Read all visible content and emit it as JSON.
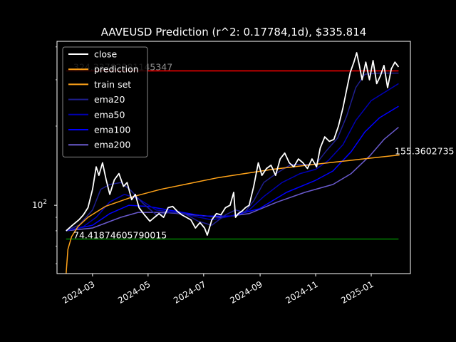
{
  "chart_data": {
    "type": "line",
    "title": "AAVEUSD Prediction (r^2: 0.17784,1d), $335.814",
    "xlabel": "",
    "ylabel": "",
    "y_scale": "log",
    "ylim": [
      55,
      420
    ],
    "xlim": [
      "2024-01-22",
      "2025-02-13"
    ],
    "x_ticks": [
      "2024-03",
      "2024-05",
      "2024-07",
      "2024-09",
      "2024-11",
      "2025-01"
    ],
    "y_ticks": [
      {
        "value": 100,
        "label": "10^2"
      }
    ],
    "grid": false,
    "legend_position": "upper-left",
    "legend": [
      "close",
      "prediction",
      "train set",
      "ema20",
      "ema50",
      "ema100",
      "ema200"
    ],
    "annotations": {
      "upper_level": {
        "value": 324.33782381145346,
        "label": "324.33782381145347"
      },
      "lower_level": {
        "value": 74.41874605790015,
        "label": "74.41874605790015"
      },
      "forecast_end": {
        "value": 155.3602735,
        "label": "155.3602735"
      }
    },
    "series": [
      {
        "name": "close",
        "color": "#ffffff",
        "points": [
          [
            "2024-02-01",
            80
          ],
          [
            "2024-02-08",
            84
          ],
          [
            "2024-02-15",
            88
          ],
          [
            "2024-02-20",
            92
          ],
          [
            "2024-02-25",
            98
          ],
          [
            "2024-03-01",
            115
          ],
          [
            "2024-03-05",
            140
          ],
          [
            "2024-03-08",
            130
          ],
          [
            "2024-03-12",
            145
          ],
          [
            "2024-03-16",
            125
          ],
          [
            "2024-03-20",
            110
          ],
          [
            "2024-03-25",
            125
          ],
          [
            "2024-03-30",
            132
          ],
          [
            "2024-04-04",
            118
          ],
          [
            "2024-04-08",
            122
          ],
          [
            "2024-04-13",
            105
          ],
          [
            "2024-04-17",
            110
          ],
          [
            "2024-04-21",
            98
          ],
          [
            "2024-04-27",
            92
          ],
          [
            "2024-05-03",
            87
          ],
          [
            "2024-05-08",
            90
          ],
          [
            "2024-05-13",
            93
          ],
          [
            "2024-05-18",
            90
          ],
          [
            "2024-05-23",
            98
          ],
          [
            "2024-05-28",
            99
          ],
          [
            "2024-06-02",
            95
          ],
          [
            "2024-06-07",
            92
          ],
          [
            "2024-06-12",
            90
          ],
          [
            "2024-06-17",
            88
          ],
          [
            "2024-06-22",
            82
          ],
          [
            "2024-06-27",
            86
          ],
          [
            "2024-07-02",
            82
          ],
          [
            "2024-07-05",
            77
          ],
          [
            "2024-07-10",
            88
          ],
          [
            "2024-07-15",
            93
          ],
          [
            "2024-07-20",
            92
          ],
          [
            "2024-07-25",
            98
          ],
          [
            "2024-07-30",
            100
          ],
          [
            "2024-08-03",
            112
          ],
          [
            "2024-08-05",
            90
          ],
          [
            "2024-08-08",
            93
          ],
          [
            "2024-08-12",
            95
          ],
          [
            "2024-08-16",
            98
          ],
          [
            "2024-08-20",
            100
          ],
          [
            "2024-08-25",
            118
          ],
          [
            "2024-08-30",
            145
          ],
          [
            "2024-09-03",
            130
          ],
          [
            "2024-09-08",
            138
          ],
          [
            "2024-09-13",
            142
          ],
          [
            "2024-09-18",
            130
          ],
          [
            "2024-09-23",
            150
          ],
          [
            "2024-09-28",
            158
          ],
          [
            "2024-10-03",
            145
          ],
          [
            "2024-10-08",
            140
          ],
          [
            "2024-10-13",
            150
          ],
          [
            "2024-10-18",
            145
          ],
          [
            "2024-10-23",
            138
          ],
          [
            "2024-10-28",
            150
          ],
          [
            "2024-11-02",
            140
          ],
          [
            "2024-11-06",
            165
          ],
          [
            "2024-11-11",
            182
          ],
          [
            "2024-11-16",
            175
          ],
          [
            "2024-11-21",
            178
          ],
          [
            "2024-11-26",
            200
          ],
          [
            "2024-12-01",
            235
          ],
          [
            "2024-12-05",
            275
          ],
          [
            "2024-12-09",
            320
          ],
          [
            "2024-12-13",
            350
          ],
          [
            "2024-12-16",
            380
          ],
          [
            "2024-12-19",
            340
          ],
          [
            "2024-12-22",
            300
          ],
          [
            "2024-12-26",
            350
          ],
          [
            "2024-12-30",
            300
          ],
          [
            "2025-01-03",
            355
          ],
          [
            "2025-01-07",
            290
          ],
          [
            "2025-01-11",
            310
          ],
          [
            "2025-01-15",
            340
          ],
          [
            "2025-01-19",
            280
          ],
          [
            "2025-01-23",
            330
          ],
          [
            "2025-01-27",
            350
          ],
          [
            "2025-01-31",
            335.814
          ]
        ]
      },
      {
        "name": "prediction",
        "color": "#ffa319",
        "points": [
          [
            "2024-02-01",
            55
          ],
          [
            "2024-02-03",
            68
          ],
          [
            "2024-02-07",
            76
          ],
          [
            "2024-02-14",
            83
          ],
          [
            "2024-02-25",
            90
          ],
          [
            "2024-03-15",
            99
          ],
          [
            "2024-04-15",
            108
          ],
          [
            "2024-05-15",
            115
          ],
          [
            "2024-06-15",
            121
          ],
          [
            "2024-07-15",
            127
          ],
          [
            "2024-08-15",
            132
          ],
          [
            "2024-09-15",
            137
          ],
          [
            "2024-10-15",
            141
          ],
          [
            "2024-11-15",
            145
          ],
          [
            "2024-12-15",
            149
          ],
          [
            "2025-01-15",
            153
          ],
          [
            "2025-02-01",
            155.36
          ]
        ]
      },
      {
        "name": "ema20",
        "color": "#1f1f8f",
        "points": [
          [
            "2024-02-01",
            80
          ],
          [
            "2024-02-15",
            84
          ],
          [
            "2024-03-01",
            96
          ],
          [
            "2024-03-10",
            115
          ],
          [
            "2024-03-20",
            120
          ],
          [
            "2024-04-01",
            122
          ],
          [
            "2024-04-12",
            114
          ],
          [
            "2024-04-25",
            102
          ],
          [
            "2024-05-10",
            92
          ],
          [
            "2024-05-25",
            94
          ],
          [
            "2024-06-10",
            93
          ],
          [
            "2024-06-25",
            87
          ],
          [
            "2024-07-10",
            84
          ],
          [
            "2024-07-25",
            92
          ],
          [
            "2024-08-05",
            96
          ],
          [
            "2024-08-15",
            94
          ],
          [
            "2024-08-25",
            104
          ],
          [
            "2024-09-05",
            122
          ],
          [
            "2024-09-20",
            133
          ],
          [
            "2024-10-05",
            143
          ],
          [
            "2024-10-20",
            143
          ],
          [
            "2024-11-01",
            143
          ],
          [
            "2024-11-12",
            160
          ],
          [
            "2024-11-25",
            180
          ],
          [
            "2024-12-05",
            218
          ],
          [
            "2024-12-15",
            280
          ],
          [
            "2024-12-25",
            315
          ],
          [
            "2025-01-10",
            318
          ],
          [
            "2025-01-31",
            318
          ]
        ]
      },
      {
        "name": "ema50",
        "color": "#0000b4",
        "points": [
          [
            "2024-02-01",
            80
          ],
          [
            "2024-02-20",
            83
          ],
          [
            "2024-03-05",
            90
          ],
          [
            "2024-03-20",
            103
          ],
          [
            "2024-04-05",
            110
          ],
          [
            "2024-04-20",
            106
          ],
          [
            "2024-05-10",
            96
          ],
          [
            "2024-06-01",
            94
          ],
          [
            "2024-06-20",
            91
          ],
          [
            "2024-07-10",
            88
          ],
          [
            "2024-07-31",
            91
          ],
          [
            "2024-08-20",
            96
          ],
          [
            "2024-09-05",
            108
          ],
          [
            "2024-09-25",
            122
          ],
          [
            "2024-10-15",
            132
          ],
          [
            "2024-11-01",
            137
          ],
          [
            "2024-11-15",
            148
          ],
          [
            "2024-12-01",
            170
          ],
          [
            "2024-12-15",
            210
          ],
          [
            "2025-01-01",
            250
          ],
          [
            "2025-01-31",
            290
          ]
        ]
      },
      {
        "name": "ema100",
        "color": "#0000ff",
        "points": [
          [
            "2024-02-01",
            80
          ],
          [
            "2024-03-01",
            84
          ],
          [
            "2024-03-20",
            93
          ],
          [
            "2024-04-10",
            100
          ],
          [
            "2024-05-01",
            99
          ],
          [
            "2024-05-31",
            95
          ],
          [
            "2024-07-01",
            91
          ],
          [
            "2024-07-31",
            91
          ],
          [
            "2024-08-31",
            97
          ],
          [
            "2024-09-30",
            112
          ],
          [
            "2024-10-31",
            124
          ],
          [
            "2024-11-20",
            135
          ],
          [
            "2024-12-10",
            160
          ],
          [
            "2024-12-25",
            190
          ],
          [
            "2025-01-10",
            215
          ],
          [
            "2025-01-31",
            238
          ]
        ]
      },
      {
        "name": "ema200",
        "color": "#6a5acd",
        "points": [
          [
            "2024-02-01",
            80
          ],
          [
            "2024-03-01",
            82
          ],
          [
            "2024-04-01",
            90
          ],
          [
            "2024-04-20",
            94
          ],
          [
            "2024-05-20",
            94
          ],
          [
            "2024-06-20",
            92
          ],
          [
            "2024-07-20",
            90
          ],
          [
            "2024-08-20",
            93
          ],
          [
            "2024-09-20",
            103
          ],
          [
            "2024-10-20",
            112
          ],
          [
            "2024-11-20",
            120
          ],
          [
            "2024-12-10",
            132
          ],
          [
            "2024-12-31",
            155
          ],
          [
            "2025-01-15",
            178
          ],
          [
            "2025-01-31",
            198
          ]
        ]
      }
    ],
    "hlines": [
      {
        "name": "train set",
        "color": "#ffa319"
      },
      {
        "value": 324.33782381145346,
        "color": "#ff0000"
      },
      {
        "value": 74.41874605790015,
        "color": "#008000"
      }
    ]
  }
}
